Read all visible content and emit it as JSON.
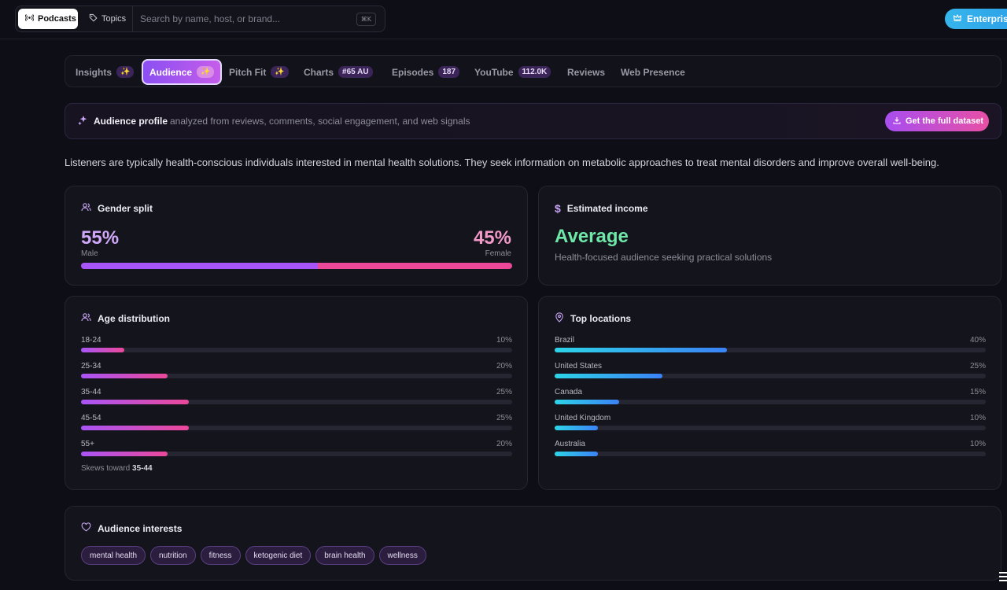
{
  "topbar": {
    "podcasts_label": "Podcasts",
    "topics_label": "Topics",
    "search_placeholder": "Search by name, host, or brand...",
    "shortcut": "⌘K",
    "enterprise_label": "Enterprise"
  },
  "tabs": [
    {
      "label": "Insights",
      "badge": "✨"
    },
    {
      "label": "Audience",
      "badge": "✨"
    },
    {
      "label": "Pitch Fit",
      "badge": "✨"
    },
    {
      "label": "Charts",
      "badge": "#65 AU"
    },
    {
      "label": "Episodes",
      "badge": "187"
    },
    {
      "label": "YouTube",
      "badge": "112.0K"
    },
    {
      "label": "Reviews",
      "badge": ""
    },
    {
      "label": "Web Presence",
      "badge": ""
    }
  ],
  "profile": {
    "title": "Audience profile",
    "subtitle": "analyzed from reviews, comments, social engagement, and web signals",
    "dataset_button": "Get the full dataset"
  },
  "summary": "Listeners are typically health-conscious individuals interested in mental health solutions. They seek information on metabolic approaches to treat mental disorders and improve overall well-being.",
  "gender": {
    "title": "Gender split",
    "male_pct": "55%",
    "male_label": "Male",
    "female_pct": "45%",
    "female_label": "Female",
    "male_fraction": 0.55,
    "male_color": "#a855f7",
    "female_color": "#ec4899"
  },
  "income": {
    "title": "Estimated income",
    "value": "Average",
    "description": "Health-focused audience seeking practical solutions"
  },
  "age": {
    "title": "Age distribution",
    "rows": [
      {
        "label": "18-24",
        "value": "10%",
        "fraction": 0.1
      },
      {
        "label": "25-34",
        "value": "20%",
        "fraction": 0.2
      },
      {
        "label": "35-44",
        "value": "25%",
        "fraction": 0.25
      },
      {
        "label": "45-54",
        "value": "25%",
        "fraction": 0.25
      },
      {
        "label": "55+",
        "value": "20%",
        "fraction": 0.2
      }
    ],
    "skews_prefix": "Skews toward",
    "skews_value": "35-44"
  },
  "locations": {
    "title": "Top locations",
    "rows": [
      {
        "label": "Brazil",
        "value": "40%",
        "fraction": 0.4
      },
      {
        "label": "United States",
        "value": "25%",
        "fraction": 0.25
      },
      {
        "label": "Canada",
        "value": "15%",
        "fraction": 0.15
      },
      {
        "label": "United Kingdom",
        "value": "10%",
        "fraction": 0.1
      },
      {
        "label": "Australia",
        "value": "10%",
        "fraction": 0.1
      }
    ]
  },
  "interests": {
    "title": "Audience interests",
    "items": [
      "mental health",
      "nutrition",
      "fitness",
      "ketogenic diet",
      "brain health",
      "wellness"
    ]
  }
}
